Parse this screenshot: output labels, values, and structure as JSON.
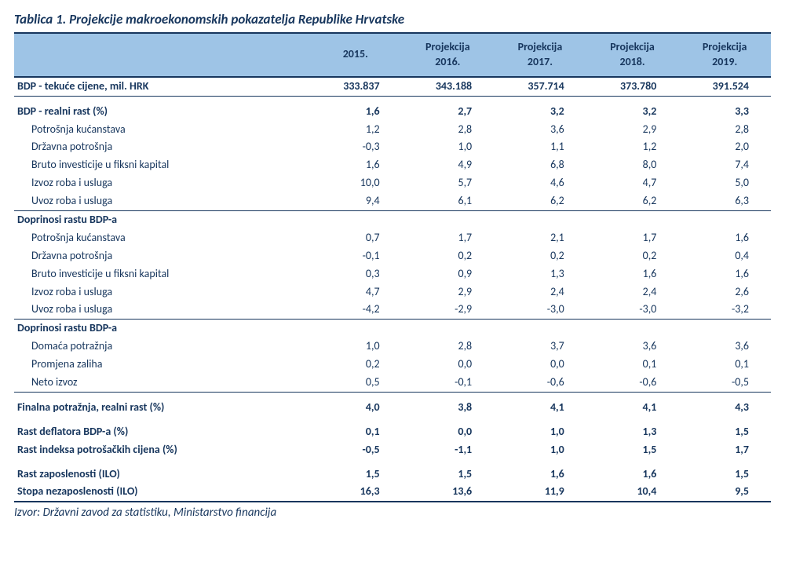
{
  "title": "Tablica 1. Projekcije makroekonomskih pokazatelja Republike Hrvatske",
  "source": "Izvor: Državni zavod za statistiku, Ministarstvo financija",
  "colors": {
    "text": "#17365d",
    "header_bg": "#9ec4e6",
    "rule": "#17365d",
    "background": "#ffffff"
  },
  "typography": {
    "title_fontsize_pt": 13,
    "body_fontsize_pt": 10.5,
    "font_family": "Calibri"
  },
  "columns": [
    {
      "key": "label",
      "width_pct": 39,
      "align": "left",
      "header_top": "",
      "header_bot": ""
    },
    {
      "key": "y2015",
      "width_pct": 12.2,
      "align": "right",
      "header_top": "",
      "header_bot": "2015."
    },
    {
      "key": "y2016",
      "width_pct": 12.2,
      "align": "right",
      "header_top": "Projekcija",
      "header_bot": "2016."
    },
    {
      "key": "y2017",
      "width_pct": 12.2,
      "align": "right",
      "header_top": "Projekcija",
      "header_bot": "2017."
    },
    {
      "key": "y2018",
      "width_pct": 12.2,
      "align": "right",
      "header_top": "Projekcija",
      "header_bot": "2018."
    },
    {
      "key": "y2019",
      "width_pct": 12.2,
      "align": "right",
      "header_top": "Projekcija",
      "header_bot": "2019."
    }
  ],
  "rows": [
    {
      "label": "BDP - tekuće cijene, mil. HRK",
      "y2015": "333.837",
      "y2016": "343.188",
      "y2017": "357.714",
      "y2018": "373.780",
      "y2019": "391.524",
      "bold": true,
      "rule": "thin"
    },
    {
      "spacer": true
    },
    {
      "label": "BDP - realni rast (%)",
      "y2015": "1,6",
      "y2016": "2,7",
      "y2017": "3,2",
      "y2018": "3,2",
      "y2019": "3,3",
      "bold": true
    },
    {
      "label": "Potrošnja kućanstava",
      "y2015": "1,2",
      "y2016": "2,8",
      "y2017": "3,6",
      "y2018": "2,9",
      "y2019": "2,8",
      "indent": true
    },
    {
      "label": "Državna potrošnja",
      "y2015": "-0,3",
      "y2016": "1,0",
      "y2017": "1,1",
      "y2018": "1,2",
      "y2019": "2,0",
      "indent": true
    },
    {
      "label": "Bruto investicije u fiksni kapital",
      "y2015": "1,6",
      "y2016": "4,9",
      "y2017": "6,8",
      "y2018": "8,0",
      "y2019": "7,4",
      "indent": true
    },
    {
      "label": "Izvoz roba i usluga",
      "y2015": "10,0",
      "y2016": "5,7",
      "y2017": "4,6",
      "y2018": "4,7",
      "y2019": "5,0",
      "indent": true
    },
    {
      "label": "Uvoz roba i usluga",
      "y2015": "9,4",
      "y2016": "6,1",
      "y2017": "6,2",
      "y2018": "6,2",
      "y2019": "6,3",
      "indent": true,
      "rule": "thin"
    },
    {
      "label": "Doprinosi rastu BDP-a",
      "bold_label_only": true
    },
    {
      "label": "Potrošnja kućanstava",
      "y2015": "0,7",
      "y2016": "1,7",
      "y2017": "2,1",
      "y2018": "1,7",
      "y2019": "1,6",
      "indent": true
    },
    {
      "label": "Državna potrošnja",
      "y2015": "-0,1",
      "y2016": "0,2",
      "y2017": "0,2",
      "y2018": "0,2",
      "y2019": "0,4",
      "indent": true
    },
    {
      "label": "Bruto investicije u fiksni kapital",
      "y2015": "0,3",
      "y2016": "0,9",
      "y2017": "1,3",
      "y2018": "1,6",
      "y2019": "1,6",
      "indent": true
    },
    {
      "label": "Izvoz roba i usluga",
      "y2015": "4,7",
      "y2016": "2,9",
      "y2017": "2,4",
      "y2018": "2,4",
      "y2019": "2,6",
      "indent": true
    },
    {
      "label": "Uvoz roba i usluga",
      "y2015": "-4,2",
      "y2016": "-2,9",
      "y2017": "-3,0",
      "y2018": "-3,0",
      "y2019": "-3,2",
      "indent": true,
      "rule": "thin"
    },
    {
      "label": "Doprinosi rastu BDP-a",
      "bold_label_only": true
    },
    {
      "label": "Domaća potražnja",
      "y2015": "1,0",
      "y2016": "2,8",
      "y2017": "3,7",
      "y2018": "3,6",
      "y2019": "3,6",
      "indent": true
    },
    {
      "label": "Promjena zaliha",
      "y2015": "0,2",
      "y2016": "0,0",
      "y2017": "0,0",
      "y2018": "0,1",
      "y2019": "0,1",
      "indent": true
    },
    {
      "label": "Neto izvoz",
      "y2015": "0,5",
      "y2016": "-0,1",
      "y2017": "-0,6",
      "y2018": "-0,6",
      "y2019": "-0,5",
      "indent": true,
      "rule": "thin"
    },
    {
      "spacer": true
    },
    {
      "label": "Finalna potražnja, realni rast (%)",
      "y2015": "4,0",
      "y2016": "3,8",
      "y2017": "4,1",
      "y2018": "4,1",
      "y2019": "4,3",
      "bold": true
    },
    {
      "spacer": true
    },
    {
      "label": "Rast deflatora BDP-a (%)",
      "y2015": "0,1",
      "y2016": "0,0",
      "y2017": "1,0",
      "y2018": "1,3",
      "y2019": "1,5",
      "bold": true
    },
    {
      "label": "Rast indeksa potrošačkih cijena (%)",
      "y2015": "-0,5",
      "y2016": "-1,1",
      "y2017": "1,0",
      "y2018": "1,5",
      "y2019": "1,7",
      "bold": true
    },
    {
      "spacer": true
    },
    {
      "label": "Rast zaposlenosti (ILO)",
      "y2015": "1,5",
      "y2016": "1,5",
      "y2017": "1,6",
      "y2018": "1,6",
      "y2019": "1,5",
      "bold": true
    },
    {
      "label": "Stopa nezaposlenosti (ILO)",
      "y2015": "16,3",
      "y2016": "13,6",
      "y2017": "11,9",
      "y2018": "10,4",
      "y2019": "9,5",
      "bold": true,
      "rule": "thick"
    }
  ]
}
